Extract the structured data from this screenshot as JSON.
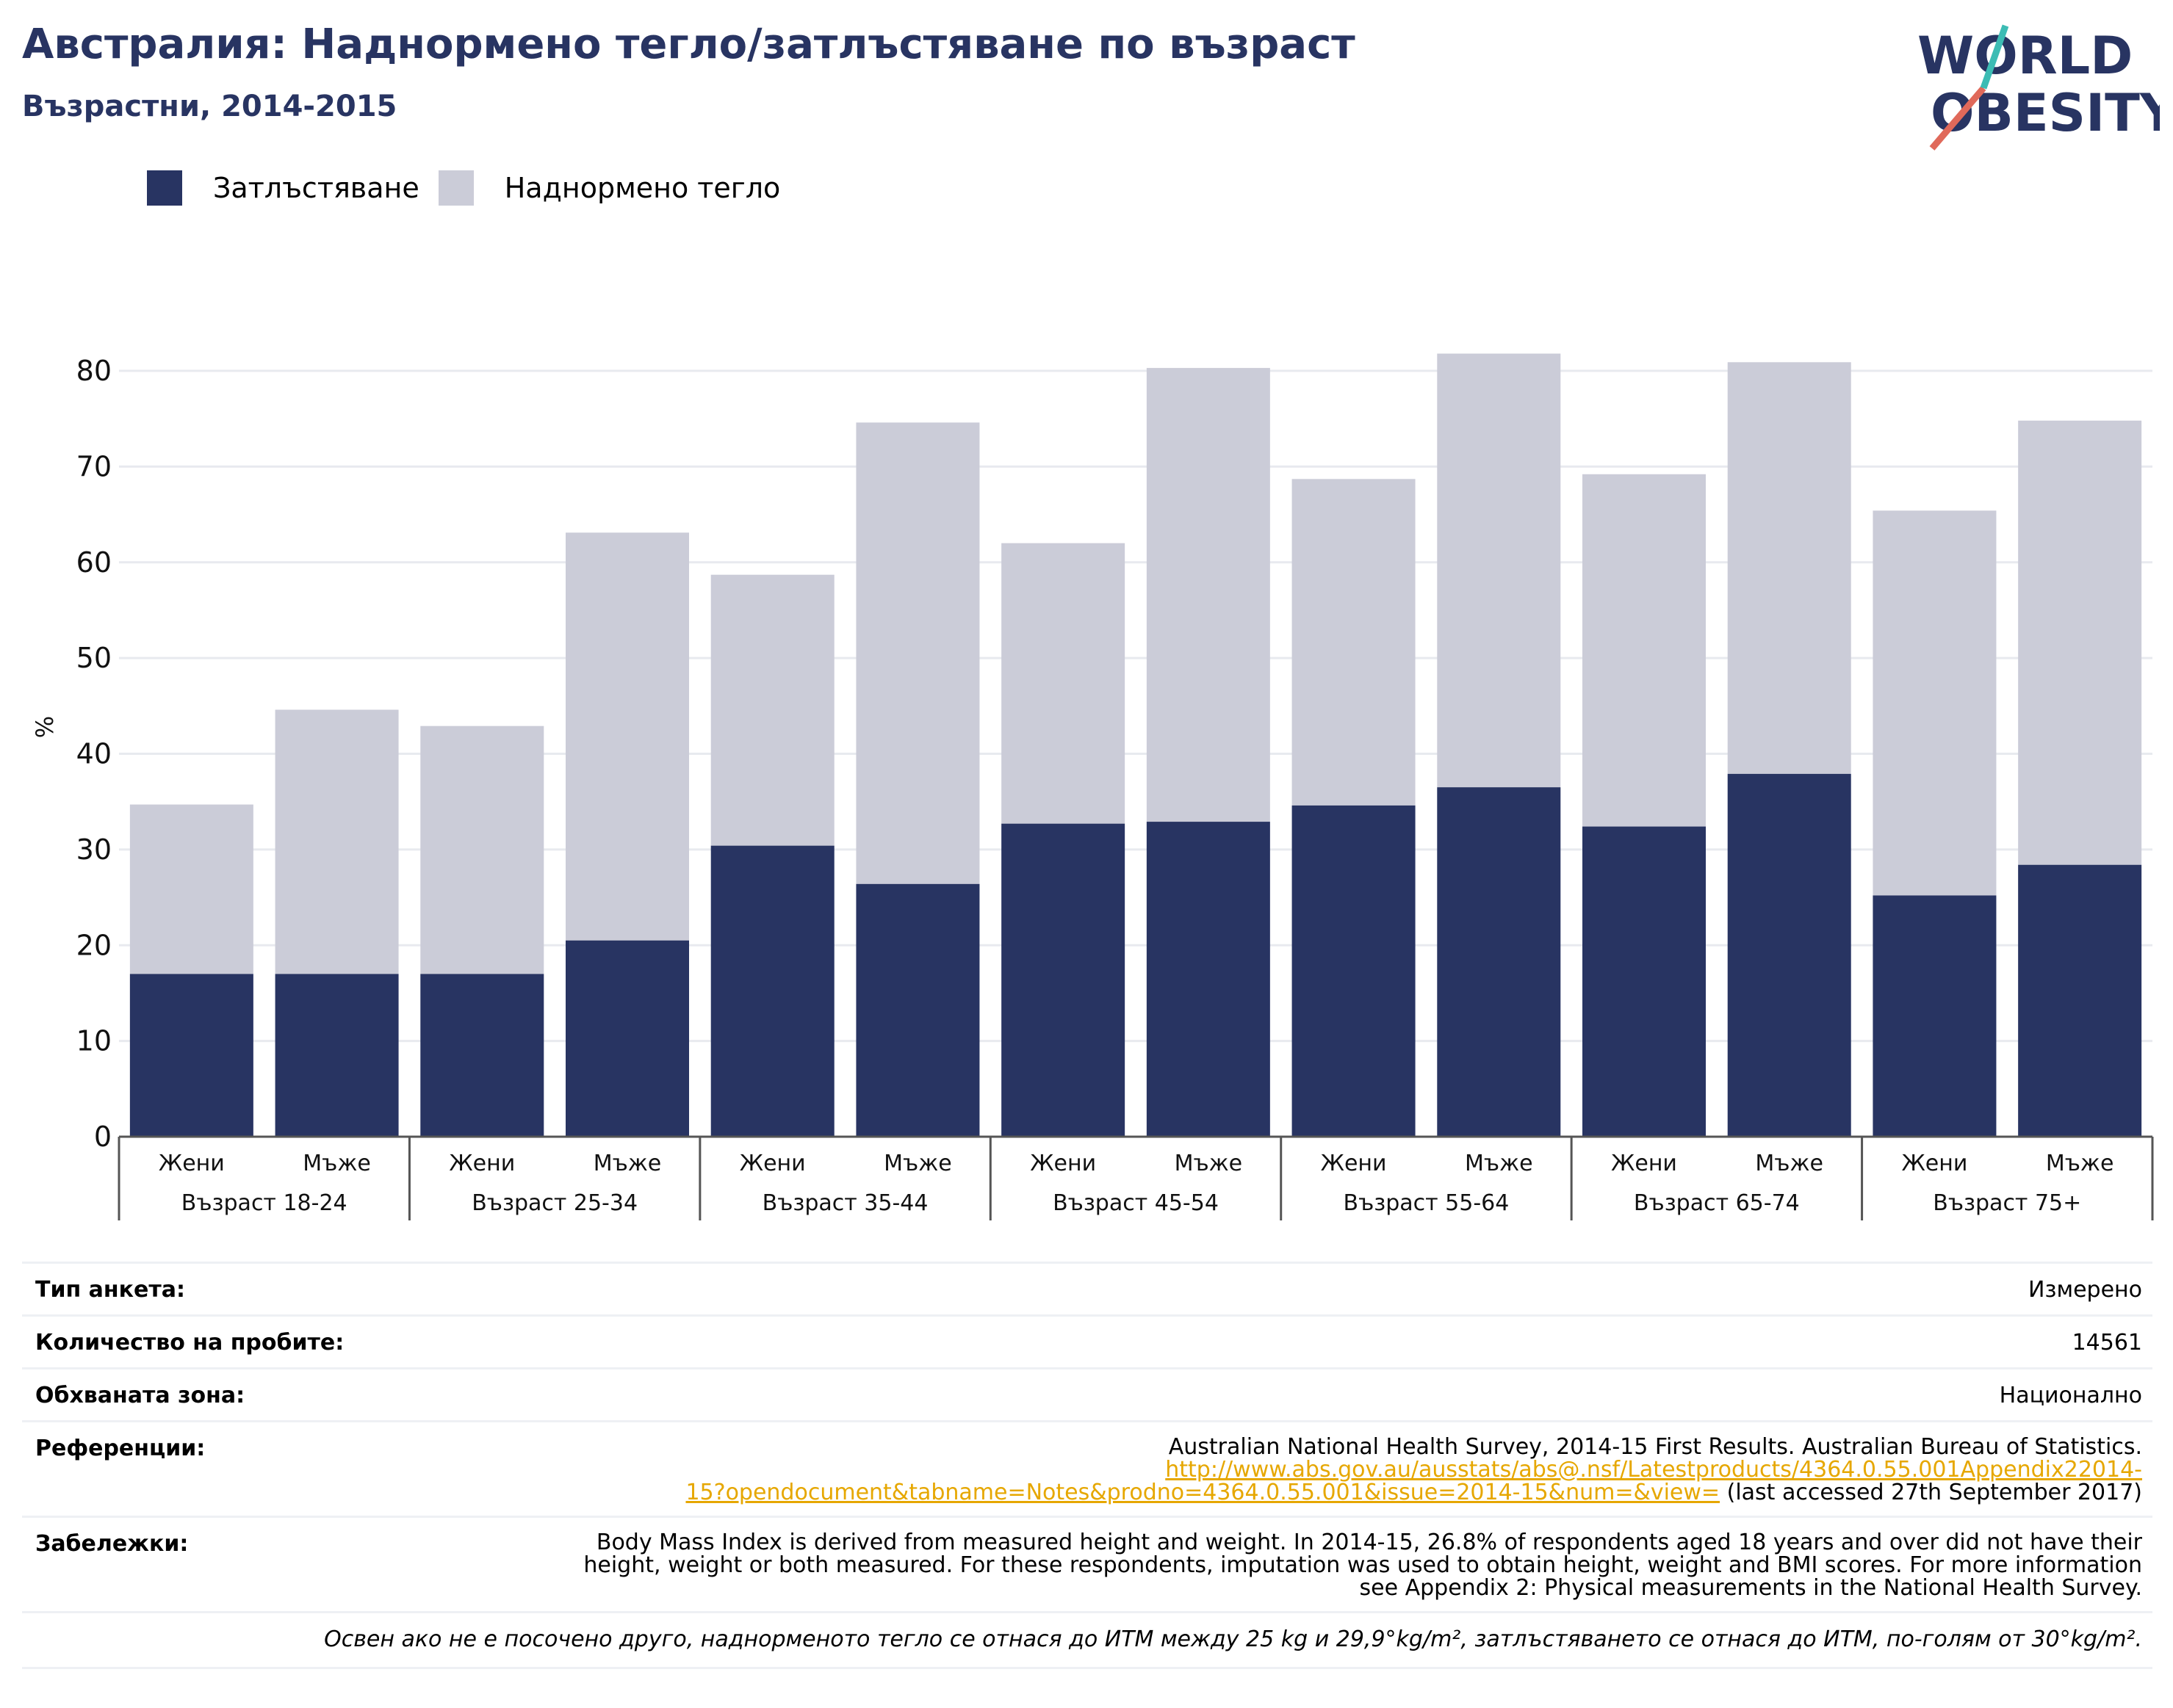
{
  "header": {
    "title": "Австралия: Наднормено тегло/затлъстяване по възраст",
    "subtitle": "Възрастни, 2014-2015"
  },
  "logo": {
    "line1": "WORLD",
    "line2": "OBESITY"
  },
  "legend": {
    "items": [
      {
        "label": "Затлъстяване",
        "color": "#283462"
      },
      {
        "label": "Наднормено тегло",
        "color": "#cbccd8"
      }
    ]
  },
  "chart_data": {
    "type": "bar",
    "stacked": true,
    "ylabel": "%",
    "ylim": [
      0,
      85
    ],
    "yticks": [
      0,
      10,
      20,
      30,
      40,
      50,
      60,
      70,
      80
    ],
    "grid": true,
    "legend_position": "top-left",
    "groups": [
      "Възраст 18-24",
      "Възраст 25-34",
      "Възраст 35-44",
      "Възраст 45-54",
      "Възраст 55-64",
      "Възраст 65-74",
      "Възраст 75+"
    ],
    "categories": [
      "Жени",
      "Мъже",
      "Жени",
      "Мъже",
      "Жени",
      "Мъже",
      "Жени",
      "Мъже",
      "Жени",
      "Мъже",
      "Жени",
      "Мъже",
      "Жени",
      "Мъже"
    ],
    "series": [
      {
        "name": "Затлъстяване",
        "color": "#283462",
        "values": [
          17.0,
          17.0,
          17.0,
          20.5,
          30.4,
          26.4,
          32.7,
          32.9,
          34.6,
          36.5,
          32.4,
          37.9,
          25.2,
          28.4
        ]
      },
      {
        "name": "Наднормено тегло",
        "color": "#cbccd8",
        "values": [
          17.7,
          27.6,
          25.9,
          42.6,
          28.3,
          48.2,
          29.3,
          47.4,
          34.1,
          45.3,
          36.8,
          43.0,
          40.2,
          46.4
        ]
      }
    ]
  },
  "info": {
    "survey_type_label": "Тип анкета:",
    "survey_type_value": "Измерено",
    "sample_size_label": "Количество на пробите:",
    "sample_size_value": "14561",
    "area_label": "Обхваната зона:",
    "area_value": "Национално",
    "references_label": "Референции:",
    "references_text": "Australian National Health Survey, 2014-15 First Results. Australian Bureau of Statistics.",
    "references_link_1": "http://www.abs.gov.au/ausstats/abs@.nsf/Latestproducts/4364.0.55.001Appendix22014-",
    "references_link_2": "15?opendocument&tabname=Notes&prodno=4364.0.55.001&issue=2014-15&num=&view=",
    "references_accessed": " (last accessed 27th September 2017)",
    "notes_label": "Забележки:",
    "notes_line_1": "Body Mass Index is derived from measured height and weight. In 2014-15, 26.8% of respondents aged 18 years and over did not have their",
    "notes_line_2": "height, weight or both measured. For these respondents, imputation was used to obtain height, weight and BMI scores. For more information",
    "notes_line_3": "see Appendix 2: Physical measurements in the National Health Survey.",
    "footnote": "Освен ако не е посочено друго, наднорменото тегло се отнася до ИТМ между 25 kg и 29,9°kg/m², затлъстяването се отнася до ИТМ, по-голям от 30°kg/m²."
  }
}
